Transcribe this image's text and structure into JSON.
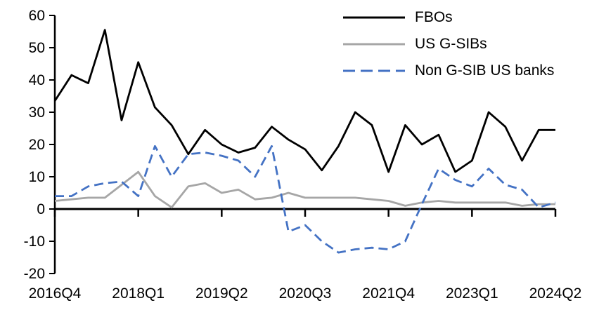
{
  "chart_data": {
    "type": "line",
    "title": "",
    "categories": [
      "2016Q4",
      "2017Q1",
      "2017Q2",
      "2017Q3",
      "2017Q4",
      "2018Q1",
      "2018Q2",
      "2018Q3",
      "2018Q4",
      "2019Q1",
      "2019Q2",
      "2019Q3",
      "2019Q4",
      "2020Q1",
      "2020Q2",
      "2020Q3",
      "2020Q4",
      "2021Q1",
      "2021Q2",
      "2021Q3",
      "2021Q4",
      "2022Q1",
      "2022Q2",
      "2022Q3",
      "2022Q4",
      "2023Q1",
      "2023Q2",
      "2023Q3",
      "2023Q4",
      "2024Q1",
      "2024Q2"
    ],
    "series": [
      {
        "name": "FBOs",
        "color": "#000000",
        "style": "solid",
        "values": [
          33.5,
          41.5,
          39,
          55.5,
          27.5,
          45.5,
          31.5,
          26,
          17,
          24.5,
          20,
          17.5,
          19,
          25.5,
          21.5,
          18.5,
          12,
          19.5,
          30,
          26,
          11.5,
          26,
          20,
          23,
          11.5,
          15,
          30,
          25.5,
          15,
          24.5,
          24.5
        ]
      },
      {
        "name": "US G-SIBs",
        "color": "#A6A6A6",
        "style": "solid",
        "values": [
          2.5,
          3,
          3.5,
          3.5,
          7.5,
          11.5,
          4,
          0.5,
          7,
          8,
          5,
          6,
          3,
          3.5,
          5,
          3.5,
          3.5,
          3.5,
          3.5,
          3,
          2.5,
          1,
          2,
          2.5,
          2,
          2,
          2,
          2,
          1,
          1.5,
          1.5
        ]
      },
      {
        "name": "Non G-SIB US banks",
        "color": "#4472C4",
        "style": "dashed",
        "values": [
          4,
          4,
          7,
          8,
          8.5,
          4,
          19.5,
          10,
          17,
          17.5,
          16.5,
          15,
          10,
          19.5,
          -7,
          -5,
          -10,
          -13.5,
          -12.5,
          -12,
          -12.5,
          -10,
          1.5,
          12.5,
          9,
          7,
          12.5,
          7.5,
          6,
          0.5,
          2
        ]
      }
    ],
    "ylim": [
      -20,
      60
    ],
    "y_ticks": [
      60,
      50,
      40,
      30,
      20,
      10,
      0,
      -10,
      -20
    ],
    "x_ticks": [
      {
        "index": 0,
        "label": "2016Q4"
      },
      {
        "index": 5,
        "label": "2018Q1"
      },
      {
        "index": 10,
        "label": "2019Q2"
      },
      {
        "index": 15,
        "label": "2020Q3"
      },
      {
        "index": 20,
        "label": "2021Q4"
      },
      {
        "index": 25,
        "label": "2023Q1"
      },
      {
        "index": 30,
        "label": "2024Q2"
      }
    ],
    "grid": false,
    "legend_position": "top-right",
    "axis_color": "#000000",
    "background": "#FFFFFF"
  }
}
